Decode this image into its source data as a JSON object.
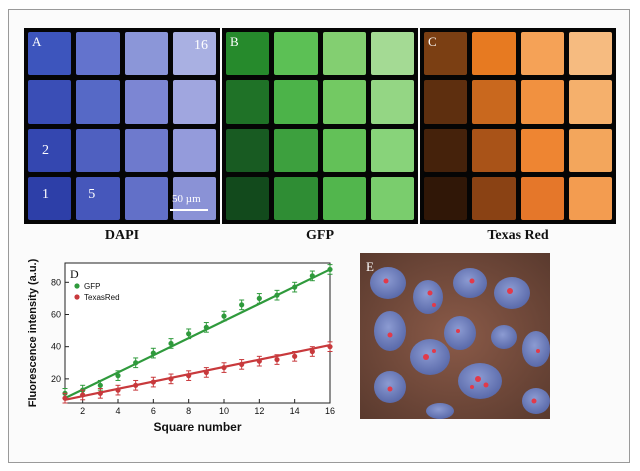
{
  "figure": {
    "panels": [
      {
        "letter": "A",
        "caption": "DAPI",
        "colors": [
          [
            "#3d55bd",
            "#6373cd",
            "#8b96d8",
            "#a9b0e2"
          ],
          [
            "#3a4eb6",
            "#5669c6",
            "#7c86d3",
            "#a0a6df"
          ],
          [
            "#3447b0",
            "#4f60c0",
            "#6e7acd",
            "#949bdb"
          ],
          [
            "#2d3fa8",
            "#4657bb",
            "#6270c8",
            "#8a92d6"
          ]
        ],
        "numbers": [
          {
            "text": "16",
            "cell": "0-3"
          },
          {
            "text": "2",
            "cell": "2-0"
          },
          {
            "text": "1",
            "cell": "3-0"
          },
          {
            "text": "5",
            "cell": "3-1"
          }
        ],
        "scalebar": "50 µm"
      },
      {
        "letter": "B",
        "caption": "GFP",
        "colors": [
          [
            "#268a2c",
            "#5cc055",
            "#83cf71",
            "#a4da94"
          ],
          [
            "#1f7227",
            "#4cb349",
            "#73c963",
            "#94d684"
          ],
          [
            "#185b22",
            "#3da03e",
            "#63c158",
            "#88d37a"
          ],
          [
            "#124a1c",
            "#2f8d34",
            "#52b64d",
            "#7acd6d"
          ]
        ]
      },
      {
        "letter": "C",
        "caption": "Texas Red",
        "colors": [
          [
            "#7b3f13",
            "#e77a21",
            "#f5a257",
            "#f6bb80"
          ],
          [
            "#5e2f0f",
            "#c9681e",
            "#f19140",
            "#f5b06c"
          ],
          [
            "#45220b",
            "#a95318",
            "#ee8532",
            "#f3a65c"
          ],
          [
            "#301707",
            "#8a4214",
            "#e5772a",
            "#f39c50"
          ]
        ]
      }
    ],
    "chart_data": {
      "type": "scatter",
      "panel_letter": "D",
      "xlabel": "Square number",
      "ylabel": "Fluorescence intensity (a.u.)",
      "xlim": [
        1,
        16
      ],
      "ylim": [
        5,
        92
      ],
      "xticks": [
        2,
        4,
        6,
        8,
        10,
        12,
        14,
        16
      ],
      "yticks": [
        20,
        40,
        60,
        80
      ],
      "legend_position": "top-left",
      "series": [
        {
          "name": "GFP",
          "color": "#2f9a3c",
          "x": [
            1,
            2,
            3,
            4,
            5,
            6,
            7,
            8,
            9,
            10,
            11,
            12,
            13,
            14,
            15,
            16
          ],
          "y": [
            11,
            13,
            16,
            22,
            30,
            36,
            42,
            48,
            52,
            59,
            66,
            70,
            72,
            77,
            84,
            88
          ],
          "err": [
            3,
            3,
            3,
            3,
            3,
            3,
            3,
            3,
            3,
            3,
            3,
            3,
            3,
            3,
            3,
            3
          ],
          "fit": [
            [
              1,
              8
            ],
            [
              16,
              88
            ]
          ]
        },
        {
          "name": "TexasRed",
          "color": "#c8393c",
          "x": [
            1,
            2,
            3,
            4,
            5,
            6,
            7,
            8,
            9,
            10,
            11,
            12,
            13,
            14,
            15,
            16
          ],
          "y": [
            8,
            10,
            11,
            13,
            16,
            18,
            20,
            22,
            24,
            27,
            29,
            31,
            32,
            34,
            37,
            40
          ],
          "err": [
            3,
            3,
            3,
            3,
            3,
            3,
            3,
            3,
            3,
            3,
            3,
            3,
            3,
            3,
            3,
            3
          ],
          "fit": [
            [
              1,
              7
            ],
            [
              16,
              41
            ]
          ]
        }
      ]
    },
    "micrograph": {
      "letter": "E"
    }
  }
}
